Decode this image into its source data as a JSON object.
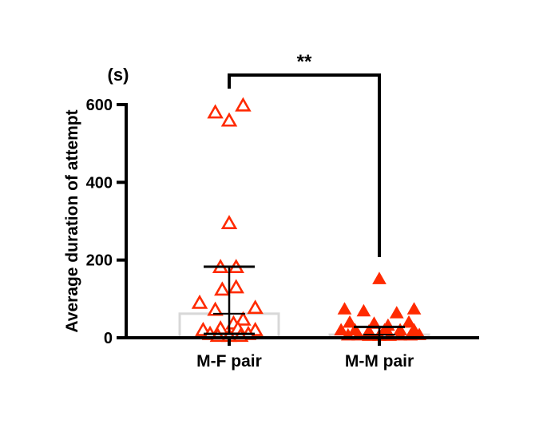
{
  "chart_data": {
    "type": "scatter",
    "ylabel": "Average duration of attempt",
    "unit_label": "(s)",
    "ylim": [
      0,
      600
    ],
    "yticks": [
      0,
      200,
      400,
      600
    ],
    "categories": [
      "M-F pair",
      "M-M pair"
    ],
    "significance": "**",
    "colors": {
      "marker": "#ff2a00",
      "bar": "#d8d8d8",
      "axis": "#000000"
    },
    "series": [
      {
        "category": "M-F pair",
        "marker": "open-triangle",
        "mean": 62,
        "sd_upper": 183,
        "sd_lower": 10,
        "points": [
          {
            "x": -0.16,
            "y": 578
          },
          {
            "x": 0.0,
            "y": 557
          },
          {
            "x": 0.16,
            "y": 596
          },
          {
            "x": 0.0,
            "y": 293
          },
          {
            "x": -0.1,
            "y": 180
          },
          {
            "x": 0.08,
            "y": 180
          },
          {
            "x": -0.08,
            "y": 122
          },
          {
            "x": 0.08,
            "y": 128
          },
          {
            "x": -0.34,
            "y": 88
          },
          {
            "x": 0.3,
            "y": 75
          },
          {
            "x": -0.16,
            "y": 70
          },
          {
            "x": 0.16,
            "y": 45
          },
          {
            "x": 0.05,
            "y": 35
          },
          {
            "x": -0.3,
            "y": 18
          },
          {
            "x": 0.3,
            "y": 18
          },
          {
            "x": -0.1,
            "y": 22
          },
          {
            "x": 0.1,
            "y": 22
          },
          {
            "x": -0.22,
            "y": 8
          },
          {
            "x": 0.22,
            "y": 8
          },
          {
            "x": -0.13,
            "y": 3
          },
          {
            "x": 0.0,
            "y": 3
          },
          {
            "x": 0.13,
            "y": 3
          }
        ]
      },
      {
        "category": "M-M pair",
        "marker": "filled-triangle",
        "mean": 8,
        "sd_upper": 28,
        "sd_lower": 0,
        "points": [
          {
            "x": 0.0,
            "y": 150
          },
          {
            "x": -0.4,
            "y": 72
          },
          {
            "x": 0.4,
            "y": 72
          },
          {
            "x": -0.18,
            "y": 67
          },
          {
            "x": 0.2,
            "y": 62
          },
          {
            "x": -0.34,
            "y": 38
          },
          {
            "x": 0.34,
            "y": 38
          },
          {
            "x": -0.06,
            "y": 35
          },
          {
            "x": 0.1,
            "y": 30
          },
          {
            "x": -0.44,
            "y": 18
          },
          {
            "x": -0.28,
            "y": 18
          },
          {
            "x": -0.12,
            "y": 15
          },
          {
            "x": 0.06,
            "y": 18
          },
          {
            "x": 0.24,
            "y": 18
          },
          {
            "x": 0.4,
            "y": 18
          },
          {
            "x": -0.36,
            "y": 5
          },
          {
            "x": -0.24,
            "y": 5
          },
          {
            "x": -0.12,
            "y": 4
          },
          {
            "x": 0.0,
            "y": 4
          },
          {
            "x": 0.12,
            "y": 4
          },
          {
            "x": 0.24,
            "y": 5
          },
          {
            "x": 0.36,
            "y": 5
          },
          {
            "x": 0.46,
            "y": 6
          }
        ]
      }
    ]
  }
}
